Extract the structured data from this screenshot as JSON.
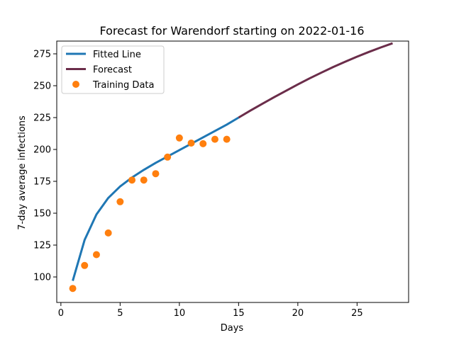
{
  "chart_data": {
    "type": "line",
    "title": "Forecast for Warendorf starting on 2022-01-16",
    "xlabel": "Days",
    "ylabel": "7-day average infections",
    "xlim": [
      -0.35,
      29.35
    ],
    "ylim": [
      80,
      285
    ],
    "xticks": [
      0,
      5,
      10,
      15,
      20,
      25
    ],
    "yticks": [
      100,
      125,
      150,
      175,
      200,
      225,
      250,
      275
    ],
    "legend_position": "top-left",
    "grid": false,
    "series": [
      {
        "name": "Fitted Line",
        "kind": "line",
        "color": "#1f77b4",
        "x": [
          1,
          2,
          3,
          4,
          5,
          6,
          7,
          8,
          9,
          10,
          11,
          12,
          13,
          14,
          15
        ],
        "y": [
          97,
          129,
          149,
          162,
          171,
          178,
          184,
          189.5,
          194.5,
          199.5,
          204.5,
          209.5,
          214.5,
          219.5,
          225
        ]
      },
      {
        "name": "Forecast",
        "kind": "line",
        "color": "#6b2d4a",
        "x": [
          15,
          16,
          17,
          18,
          19,
          20,
          21,
          22,
          23,
          24,
          25,
          26,
          27,
          28
        ],
        "y": [
          225,
          230.5,
          235.8,
          241,
          246,
          251,
          255.8,
          260.3,
          264.7,
          268.8,
          272.8,
          276.5,
          280,
          283.3
        ]
      },
      {
        "name": "Training Data",
        "kind": "scatter",
        "color": "#ff7f0e",
        "x": [
          1,
          2,
          3,
          4,
          5,
          6,
          7,
          8,
          9,
          10,
          11,
          12,
          13,
          14
        ],
        "y": [
          91,
          109,
          117.5,
          134.5,
          159,
          176,
          176,
          181,
          194,
          209,
          205,
          204.5,
          208,
          208
        ]
      }
    ]
  }
}
